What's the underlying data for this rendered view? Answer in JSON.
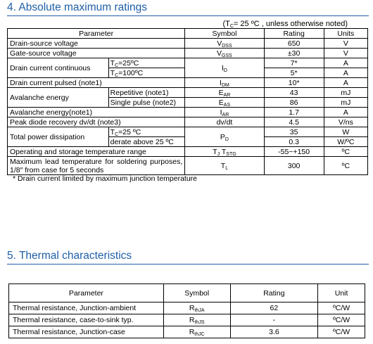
{
  "section1": {
    "title": "4. Absolute maximum ratings",
    "condition": {
      "pre": "(T",
      "sub": "C",
      "post": "= 25 ºC , unless otherwise noted)"
    },
    "headers": {
      "parameter": "Parameter",
      "symbol": "Symbol",
      "rating": "Rating",
      "units": "Units"
    },
    "rows": {
      "vdss": {
        "param": "Drain-source voltage",
        "sym_main": "V",
        "sym_sub": "DSS",
        "rating": "650",
        "unit": "V"
      },
      "vgss": {
        "param": "Gate-source voltage",
        "sym_main": "V",
        "sym_sub": "GSS",
        "rating": "±30",
        "unit": "V"
      },
      "id": {
        "param": "Drain current continuous",
        "sym_main": "I",
        "sym_sub": "D",
        "cond1_pre": "T",
        "cond1_sub": "C",
        "cond1_post": "=25ºC",
        "rating1": "7*",
        "unit1": "A",
        "cond2_pre": "T",
        "cond2_sub": "C",
        "cond2_post": "=100ºC",
        "rating2": "5*",
        "unit2": "A"
      },
      "idm": {
        "param": "Drain current pulsed (note1)",
        "sym_main": "I",
        "sym_sub": "DM",
        "rating": "10*",
        "unit": "A"
      },
      "eas": {
        "param": "Avalanche energy",
        "cond1": "Repetitive (note1)",
        "sym1_main": "E",
        "sym1_sub": "AR",
        "rating1": "43",
        "unit1": "mJ",
        "cond2": "Single pulse (note2)",
        "sym2_main": "E",
        "sym2_sub": "AS",
        "rating2": "86",
        "unit2": "mJ"
      },
      "iar": {
        "param": "Avalanche energy(note1)",
        "sym_main": "I",
        "sym_sub": "AR",
        "rating": "1.7",
        "unit": "A"
      },
      "dvdt": {
        "param": "Peak diode recovery dv/dt (note3)",
        "sym": "dv/dt",
        "rating": "4.5",
        "unit": "V/ns"
      },
      "pd": {
        "param": "Total power dissipation",
        "sym_main": "P",
        "sym_sub": "D",
        "cond1_pre": "T",
        "cond1_sub": "C",
        "cond1_post": "=25 ºC",
        "rating1": "35",
        "unit1": "W",
        "cond2": "derate above 25 ºC",
        "rating2": "0.3",
        "unit2": "W/ºC"
      },
      "tj": {
        "param": "Operating and storage temperature range",
        "sym_a": "T",
        "sym_a_sub": "J",
        "sym_b": "T",
        "sym_b_sub": "STG",
        "rating": "-55~+150",
        "unit": "ºC"
      },
      "tl": {
        "param": "Maximum lead temperature for soldering purposes, 1/8″ from case for 5 seconds",
        "sym_main": "T",
        "sym_sub": "L",
        "rating": "300",
        "unit": "ºC"
      }
    },
    "footnote": "* Drain current limited by maximum junction temperature"
  },
  "section2": {
    "title": "5. Thermal characteristics",
    "headers": {
      "parameter": "Parameter",
      "symbol": "Symbol",
      "rating": "Rating",
      "unit": "Unit"
    },
    "rows": [
      {
        "param": "Thermal resistance, Junction-ambient",
        "sym_main": "R",
        "sym_sub": "thJA",
        "rating": "62",
        "unit": "ºC/W"
      },
      {
        "param": "Thermal resistance, case-to-sink typ.",
        "sym_main": "R",
        "sym_sub": "thJS",
        "rating": "-",
        "unit": "ºC/W"
      },
      {
        "param": "Thermal resistance, Junction-case",
        "sym_main": "R",
        "sym_sub": "thJC",
        "rating": "3.6",
        "unit": "ºC/W"
      }
    ]
  }
}
